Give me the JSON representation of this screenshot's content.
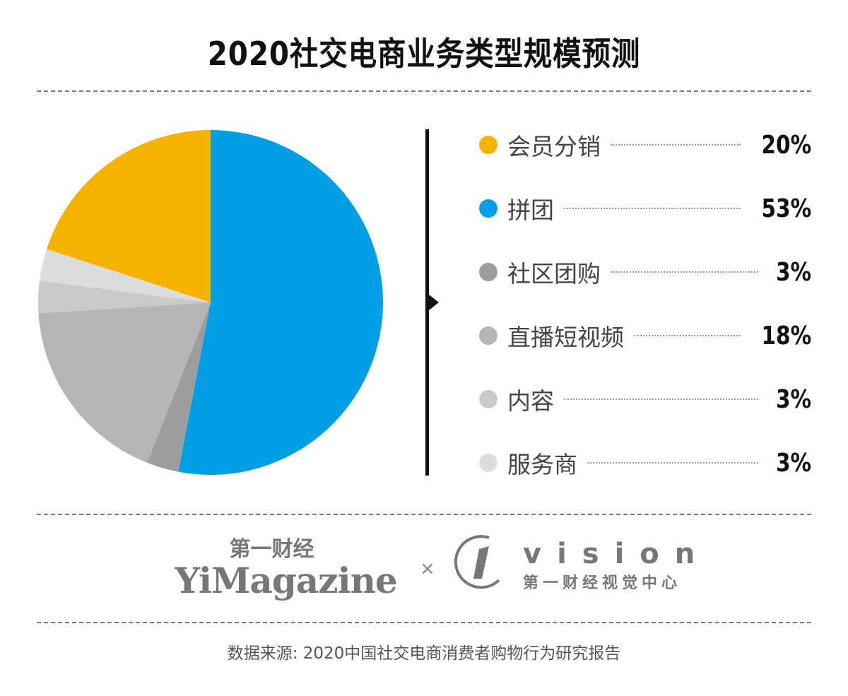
{
  "chart_data": {
    "type": "pie",
    "title": "2020社交电商业务类型规模预测",
    "slices": [
      {
        "label": "会员分销",
        "value": 20,
        "display": "20%",
        "color": "#F5B300"
      },
      {
        "label": "拼团",
        "value": 53,
        "display": "53%",
        "color": "#009FE5"
      },
      {
        "label": "社区团购",
        "value": 3,
        "display": "3%",
        "color": "#9C9D9D"
      },
      {
        "label": "直播短视频",
        "value": 18,
        "display": "18%",
        "color": "#B4B5B5"
      },
      {
        "label": "内容",
        "value": 3,
        "display": "3%",
        "color": "#C9CACA"
      },
      {
        "label": "服务商",
        "value": 3,
        "display": "3%",
        "color": "#DCDDDD"
      }
    ],
    "draw_order": [
      1,
      2,
      3,
      4,
      5,
      0
    ],
    "start": "12 o'clock, clockwise",
    "legend_placement": "right"
  },
  "logos": {
    "yimagazine_cn": "第一财经",
    "yimagazine_en": "YiMagazine",
    "times": "×",
    "vision_en": "vision",
    "vision_cn": "第一财经视觉中心"
  },
  "source": "数据来源: 2020中国社交电商消费者购物行为研究报告"
}
